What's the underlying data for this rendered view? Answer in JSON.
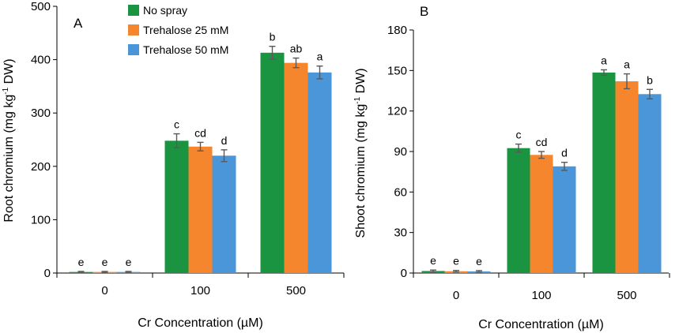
{
  "chart_data": [
    {
      "type": "bar",
      "panel": "A",
      "title": "",
      "xlabel": "Cr Concentration (µM)",
      "ylabel": "Root chromium (mg kg-1 DW)",
      "ylabel_parts": {
        "pre": "Root chromium (mg kg",
        "sup": "-1",
        "post": " DW)"
      },
      "ylim": [
        0,
        500
      ],
      "yticks": [
        0,
        100,
        200,
        300,
        400,
        500
      ],
      "categories": [
        "0",
        "100",
        "500"
      ],
      "series": [
        {
          "name": "No spray",
          "color": "#1a9440",
          "values": [
            2,
            248,
            413
          ],
          "errors": [
            1,
            13,
            12
          ],
          "letters": [
            "e",
            "c",
            "b"
          ]
        },
        {
          "name": "Trehalose 25 mM",
          "color": "#f5862e",
          "values": [
            2,
            237,
            394
          ],
          "errors": [
            1,
            8,
            9
          ],
          "letters": [
            "e",
            "cd",
            "ab"
          ]
        },
        {
          "name": "Trehalose 50 mM",
          "color": "#4a96d8",
          "values": [
            2,
            220,
            376
          ],
          "errors": [
            1,
            11,
            12
          ],
          "letters": [
            "e",
            "d",
            "a"
          ]
        }
      ],
      "legend_position": "top-left"
    },
    {
      "type": "bar",
      "panel": "B",
      "title": "",
      "xlabel": "Cr Concentration (µM)",
      "ylabel": "Shoot chromium (mg kg-1 DW)",
      "ylabel_parts": {
        "pre": "Shoot chromium (mg kg",
        "sup": "-1",
        "post": " DW)"
      },
      "ylim": [
        0,
        180
      ],
      "yticks": [
        0,
        30,
        60,
        90,
        120,
        150,
        180
      ],
      "categories": [
        "0",
        "100",
        "500"
      ],
      "series": [
        {
          "name": "No spray",
          "color": "#1a9440",
          "values": [
            1.5,
            92.5,
            148.5
          ],
          "errors": [
            0.7,
            3,
            2
          ],
          "letters": [
            "e",
            "c",
            "a"
          ]
        },
        {
          "name": "Trehalose 25 mM",
          "color": "#f5862e",
          "values": [
            1.3,
            87.5,
            142
          ],
          "errors": [
            0.6,
            2.5,
            5.5
          ],
          "letters": [
            "e",
            "cd",
            "a"
          ]
        },
        {
          "name": "Trehalose 50 mM",
          "color": "#4a96d8",
          "values": [
            1.2,
            79,
            132.5
          ],
          "errors": [
            0.6,
            3,
            3.5
          ],
          "letters": [
            "e",
            "d",
            "b"
          ]
        }
      ],
      "legend_position": "none"
    }
  ]
}
